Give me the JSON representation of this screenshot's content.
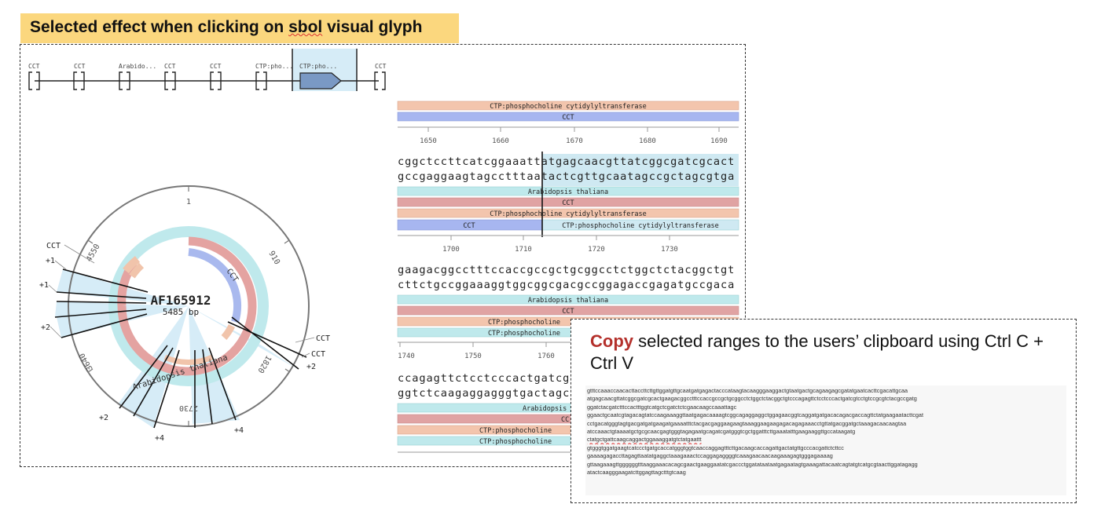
{
  "banner": {
    "text_pre": "Selected effect when clicking on ",
    "text_sbol": "sbol",
    "text_post": " visual glyph"
  },
  "glyph_row": {
    "labels": [
      "CCT",
      "CCT",
      "Arabido...",
      "CCT",
      "CCT",
      "CTP:pho...",
      "CTP:pho...",
      "CCT"
    ],
    "selected_index": 6
  },
  "plasmid": {
    "name": "AF165912",
    "length": "5485 bp",
    "ticks": [
      "1",
      "910",
      "1820",
      "2730",
      "3640",
      "4550"
    ],
    "feature_labels": {
      "cct_inner": "CCT",
      "arabidopsis": "Arabidopsis thaliana"
    },
    "outside_labels": [
      "CCT",
      "+1",
      "+1",
      "+2",
      "CCT",
      "CCT",
      "+2",
      "+2",
      "+4",
      "+4"
    ]
  },
  "linear_view": {
    "block1": {
      "features": [
        "CTP:phosphocholine cytidylyltransferase",
        "CCT"
      ],
      "ruler": [
        "1650",
        "1660",
        "1670",
        "1680",
        "1690"
      ]
    },
    "block2": {
      "top_seq": "cggctccttcatcggaaattatgagcaacgttatcggcgatcgcact",
      "bottom_seq": "gccgaggaagtagcctttaatactcgttgcaatagccgctagcgtga",
      "features": [
        "Arabidopsis thaliana",
        "CCT",
        "CTP:phosphocholine cytidylyltransferase",
        "CCT",
        "CTP:phosphocholine cytidylyltransferase"
      ],
      "ruler": [
        "1700",
        "1710",
        "1720",
        "1730"
      ]
    },
    "block3": {
      "top_seq": "gaagacggcctttccaccgccgctgcggcctctggctctacggctgt",
      "bottom_seq": "cttctgccggaaaggtggcggcgacgccggagaccgagatgccgaca",
      "features": [
        "Arabidopsis thaliana",
        "CCT",
        "CTP:phosphocholine",
        "CTP:phosphocholine"
      ],
      "ruler": [
        "1740",
        "1750",
        "1760"
      ]
    },
    "block4": {
      "top_seq": "ccagagttctcctcccactgatcg",
      "bottom_seq": "ggtctcaagaggagggtgactagc",
      "features": [
        "Arabidopsis",
        "CC",
        "CTP:phosphocholine",
        "CTP:phosphocholine"
      ]
    }
  },
  "copy_panel": {
    "title_bold": "Copy",
    "title_rest": " selected ranges to the users’ clipboard using Ctrl C + Ctrl V",
    "clipboard_lines": [
      "gtttccaaaccaacacttaccttcttgttggatgttgcaatgatgagactacccataagtacaagggaaggactgtaatgactgcagaagagcgatatgaatcacttcgacattgcaa",
      "atgagcaacgttatcggcgatcgcactgaagacggcctttccaccgccgctgcggcctctggctctacggctgtcccagagttctcctcccactgatcgtcctgtccgcgtctacgccgatg",
      "ggatctacgatctttccactttggtcatgctcgatctctcgaacaagccaaattagc",
      "ggaactgcaatcgtagacagtatccaagaaaggttaatgagacaaaagtcggcagaggaggctggagaacggtcaggatgatgacacagacgaccagttctatgaagaatacttcgat",
      "cctgacatgggtagtgacgatgatgaagatgaaaatttctacgacgaggaagaagtaaaggaagaagagacagagaaacctgttatgacggatgctaaagacaacaagtaa",
      "atccaaactgtaaaatgctgcgcaacgagtgggtagagaatgcagatcgatgggtcgctggatttcttgaaatatttgaagaaggttgccataagatg",
      "ctatgctgattcaagcaggactggaaaggatgtctatgaattt",
      "gtgggtggatgaagtcatccctgatgcaccatgggtggtcaaccaggagtttcttgacaagcaccagattgactatgttgcccacgattctcttcc",
      "gaaaagagaccttagagttaatatgaggctaaagaaactccaggagaggggtcaaagaacaacaagaaagagtgggagaaaag",
      "gttaagaaagttggggggtttaaggaaacacagcgaactgaaggaatatcgaccctggatataataatgagaatagtgaaagattacaatcagtatgtcatgcgtaacttggatagagg",
      "atactcaagggaagatcttggagttagctttgtcaag"
    ]
  }
}
